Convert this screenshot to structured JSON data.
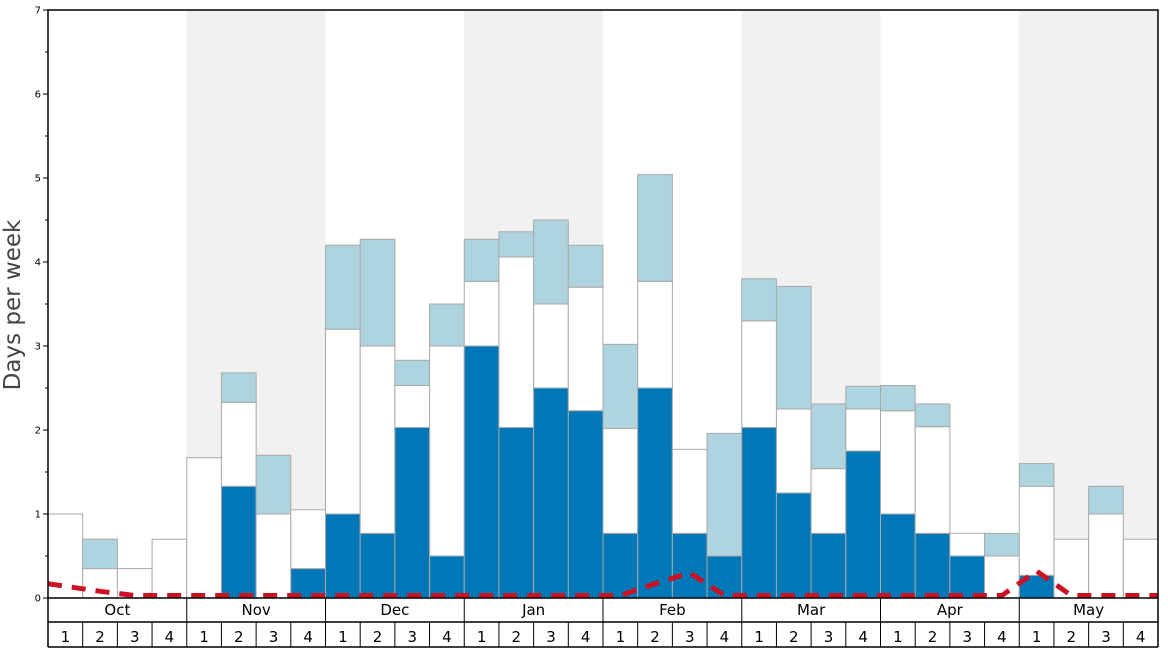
{
  "chart_data": {
    "type": "bar",
    "ylabel": "Days per week",
    "ylim": [
      0,
      7
    ],
    "yticks": [
      0,
      1,
      2,
      3,
      4,
      5,
      6,
      7
    ],
    "months": [
      "Oct",
      "Nov",
      "Dec",
      "Jan",
      "Feb",
      "Mar",
      "Apr",
      "May"
    ],
    "weeks_per_month": [
      "1",
      "2",
      "3",
      "4"
    ],
    "month_band_colors": [
      "#ffffff",
      "#f1f1f1"
    ],
    "series": [
      {
        "color": "#0077b6",
        "values": [
          0,
          0,
          0,
          0,
          0,
          1.33,
          0,
          0.35,
          1.0,
          0.77,
          2.03,
          0.5,
          3.0,
          2.03,
          2.5,
          2.23,
          0.77,
          2.5,
          0.77,
          0.5,
          2.03,
          1.25,
          0.77,
          1.75,
          1.0,
          0.77,
          0.5,
          0,
          0.27,
          0,
          0,
          0
        ]
      },
      {
        "color": "#ffffff",
        "values": [
          1.0,
          0.35,
          0.35,
          0.7,
          1.67,
          1.0,
          1.0,
          0.7,
          2.2,
          2.23,
          0.5,
          2.5,
          0.77,
          2.03,
          1.0,
          1.47,
          1.25,
          1.27,
          1.0,
          0,
          1.27,
          1.0,
          0.77,
          0.5,
          1.23,
          1.27,
          0.27,
          0.5,
          1.06,
          0.7,
          1.0,
          0.7
        ]
      },
      {
        "color": "#aed4e0",
        "values": [
          0,
          0.35,
          0,
          0,
          0,
          0.35,
          0.7,
          0,
          1.0,
          1.27,
          0.3,
          0.5,
          0.5,
          0.3,
          1.0,
          0.5,
          1.0,
          1.27,
          0,
          1.46,
          0.5,
          1.46,
          0.77,
          0.27,
          0.3,
          0.27,
          0,
          0.27,
          0.27,
          0,
          0.33,
          0
        ]
      }
    ],
    "trend_line": {
      "color": "#cc1122",
      "style": "dashed",
      "values": [
        0.17,
        0.08,
        0.03,
        0.03,
        0.03,
        0.03,
        0.03,
        0.03,
        0.03,
        0.03,
        0.03,
        0.03,
        0.03,
        0.03,
        0.03,
        0.03,
        0.03,
        0.17,
        0.3,
        0.03,
        0.03,
        0.03,
        0.03,
        0.03,
        0.03,
        0.03,
        0.03,
        0.03,
        0.32,
        0.03,
        0.03,
        0.03
      ]
    }
  }
}
